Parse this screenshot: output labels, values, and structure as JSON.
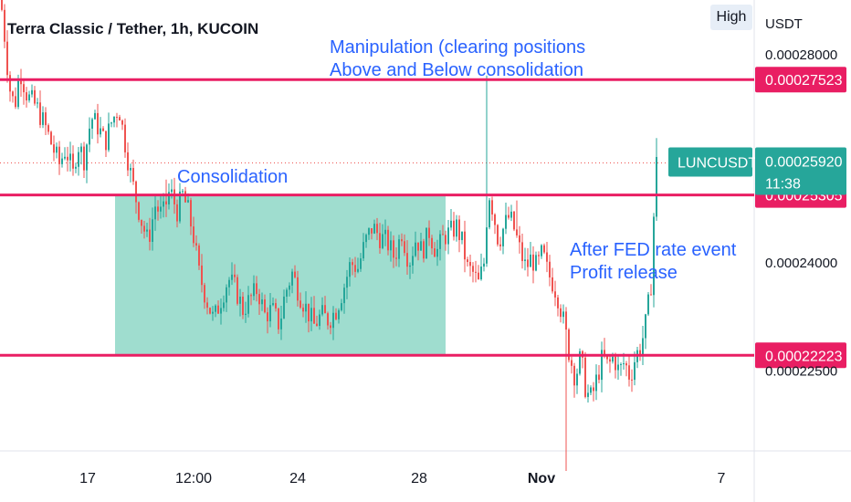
{
  "header": {
    "title": "Terra Classic / Tether, 1h, KUCOIN",
    "high_button": "High",
    "unit": "USDT"
  },
  "colors": {
    "up": "#26a69a",
    "down": "#ef5350",
    "level": "#e91e63",
    "zone": "#7fd1bf",
    "annotation": "#2962ff",
    "axis_text": "#131722",
    "grid": "#f0f3fa"
  },
  "chart_data": {
    "type": "candlestick",
    "symbol": "LUNCUSDT",
    "x_ticks": [
      "17",
      "12:00",
      "24",
      "28",
      "Nov",
      "7"
    ],
    "y_ticks": [
      0.00028,
      0.00024
    ],
    "y_tick_labels": [
      "0.00028000",
      "0.00024000"
    ],
    "ylim": [
      0.0002,
      0.00029
    ],
    "current_price": {
      "label": "LUNCUSDT",
      "value": "0.00025920",
      "countdown": "11:38",
      "y": 0.0002592
    },
    "levels": [
      {
        "label": "0.00027523",
        "y": 0.00027523
      },
      {
        "label": "0.00025305",
        "y": 0.00025305
      },
      {
        "label": "0.00022223",
        "y": 0.00022223
      }
    ],
    "zone": {
      "label": "Consolidation",
      "y_top": 0.00025305,
      "y_bottom": 0.00022223
    },
    "annotations": [
      {
        "lines": [
          "Manipulation (clearing positions",
          "Above and Below consolidation"
        ]
      },
      {
        "lines": [
          "Consolidation"
        ]
      },
      {
        "lines": [
          "After FED rate event",
          "Profit release"
        ]
      }
    ],
    "hidden_label": "0.00022500",
    "path": [
      [
        0,
        0.000292
      ],
      [
        6,
        0.000282
      ],
      [
        10,
        0.000274
      ],
      [
        16,
        0.00027
      ],
      [
        22,
        0.000277
      ],
      [
        30,
        0.000272
      ],
      [
        40,
        0.00027
      ],
      [
        50,
        0.000266
      ],
      [
        58,
        0.000262
      ],
      [
        65,
        0.000259
      ],
      [
        72,
        0.000262
      ],
      [
        80,
        0.000257
      ],
      [
        85,
        0.000263
      ],
      [
        92,
        0.00026
      ],
      [
        100,
        0.000268
      ],
      [
        108,
        0.000266
      ],
      [
        115,
        0.000263
      ],
      [
        122,
        0.000267
      ],
      [
        130,
        0.00027
      ],
      [
        136,
        0.000264
      ],
      [
        142,
        0.000258
      ],
      [
        148,
        0.000253
      ],
      [
        155,
        0.000248
      ],
      [
        162,
        0.000244
      ],
      [
        170,
        0.000251
      ],
      [
        178,
        0.000249
      ],
      [
        186,
        0.000254
      ],
      [
        194,
        0.00025
      ],
      [
        200,
        0.000253
      ],
      [
        206,
        0.00025
      ],
      [
        212,
        0.000245
      ],
      [
        218,
        0.000238
      ],
      [
        226,
        0.000233
      ],
      [
        234,
        0.000229
      ],
      [
        242,
        0.000233
      ],
      [
        250,
        0.000237
      ],
      [
        258,
        0.000235
      ],
      [
        266,
        0.000231
      ],
      [
        274,
        0.000233
      ],
      [
        282,
        0.000235
      ],
      [
        290,
        0.00023
      ],
      [
        298,
        0.000231
      ],
      [
        306,
        0.000228
      ],
      [
        312,
        0.000234
      ],
      [
        320,
        0.000238
      ],
      [
        328,
        0.000234
      ],
      [
        336,
        0.000231
      ],
      [
        344,
        0.000228
      ],
      [
        352,
        0.00023
      ],
      [
        360,
        0.000229
      ],
      [
        368,
        0.000231
      ],
      [
        376,
        0.000235
      ],
      [
        384,
        0.00024
      ],
      [
        392,
        0.000239
      ],
      [
        400,
        0.000244
      ],
      [
        408,
        0.000247
      ],
      [
        416,
        0.000245
      ],
      [
        424,
        0.000244
      ],
      [
        432,
        0.000241
      ],
      [
        440,
        0.000246
      ],
      [
        448,
        0.00024
      ],
      [
        456,
        0.000245
      ],
      [
        462,
        0.000242
      ],
      [
        470,
        0.000246
      ],
      [
        478,
        0.000242
      ],
      [
        486,
        0.000245
      ],
      [
        494,
        0.000246
      ],
      [
        500,
        0.000247
      ],
      [
        506,
        0.000244
      ],
      [
        512,
        0.000239
      ],
      [
        518,
        0.000238
      ],
      [
        524,
        0.000236
      ],
      [
        530,
        0.00024
      ],
      [
        535,
        0.000254
      ],
      [
        540,
        0.00025
      ],
      [
        546,
        0.000244
      ],
      [
        552,
        0.000247
      ],
      [
        558,
        0.000249
      ],
      [
        564,
        0.000246
      ],
      [
        570,
        0.000242
      ],
      [
        576,
        0.000239
      ],
      [
        582,
        0.000241
      ],
      [
        588,
        0.000239
      ],
      [
        594,
        0.000242
      ],
      [
        600,
        0.000238
      ],
      [
        606,
        0.000236
      ],
      [
        612,
        0.000233
      ],
      [
        618,
        0.000228
      ],
      [
        624,
        0.000222
      ],
      [
        630,
        0.000218
      ],
      [
        636,
        0.000222
      ],
      [
        642,
        0.000215
      ],
      [
        648,
        0.000214
      ],
      [
        654,
        0.000218
      ],
      [
        660,
        0.000222
      ],
      [
        666,
        0.00022
      ],
      [
        672,
        0.000222
      ],
      [
        678,
        0.000219
      ],
      [
        684,
        0.000221
      ],
      [
        690,
        0.000218
      ],
      [
        696,
        0.000222
      ],
      [
        702,
        0.000224
      ],
      [
        708,
        0.000229
      ],
      [
        713,
        0.000236
      ],
      [
        716,
        0.000249
      ],
      [
        719,
        0.0002592
      ]
    ]
  }
}
